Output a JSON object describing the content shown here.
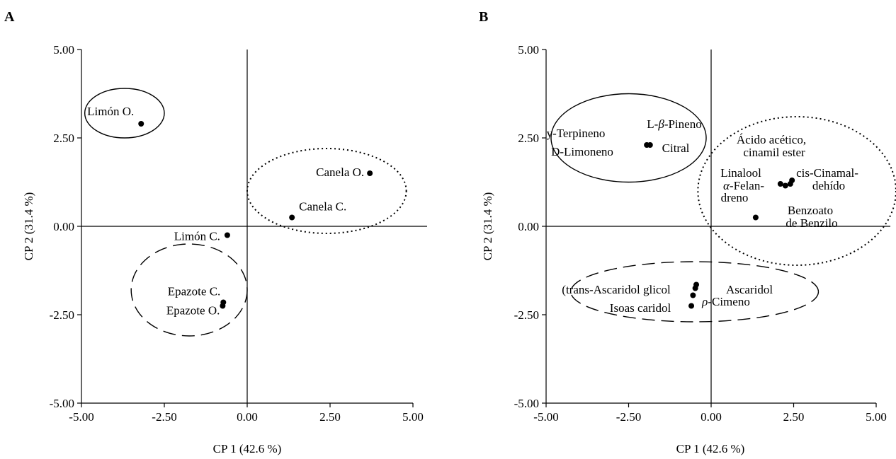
{
  "chart_data": [
    {
      "type": "scatter",
      "panel_label": "A",
      "xlabel": "CP 1 (42.6 %)",
      "ylabel": "CP 2 (31.4 %)",
      "xlim": [
        -5,
        5
      ],
      "ylim": [
        -5,
        5
      ],
      "xticks": [
        "-5.00",
        "-2.50",
        "0.00",
        "2.50",
        "5.00"
      ],
      "yticks": [
        "-5.00",
        "-2.50",
        "0.00",
        "2.50",
        "5.00"
      ],
      "points": [
        {
          "label": "Limón O.",
          "x": -3.2,
          "y": 2.9
        },
        {
          "label": "Canela O.",
          "x": 3.7,
          "y": 1.5
        },
        {
          "label": "Canela C.",
          "x": 1.35,
          "y": 0.25
        },
        {
          "label": "Limón C.",
          "x": -0.6,
          "y": -0.25
        },
        {
          "label": "Epazote C.",
          "x": -0.72,
          "y": -2.15
        },
        {
          "label": "Epazote O.",
          "x": -0.74,
          "y": -2.25
        }
      ],
      "groups": [
        {
          "style": "solid",
          "cx": -3.7,
          "cy": 3.2,
          "rx": 1.2,
          "ry": 0.7
        },
        {
          "style": "dotted",
          "cx": 2.4,
          "cy": 1.0,
          "rx": 2.4,
          "ry": 1.2
        },
        {
          "style": "dashed",
          "cx": -1.75,
          "cy": -1.8,
          "rx": 1.75,
          "ry": 1.3
        }
      ]
    },
    {
      "type": "scatter",
      "panel_label": "B",
      "xlabel": "CP 1 (42.6 %)",
      "ylabel": "CP 2 (31.4 %)",
      "xlim": [
        -5,
        5
      ],
      "ylim": [
        -5,
        5
      ],
      "xticks": [
        "-5.00",
        "-2.50",
        "0.00",
        "2.50",
        "5.00"
      ],
      "yticks": [
        "-5.00",
        "-2.50",
        "0.00",
        "2.50",
        "5.00"
      ],
      "points": [
        {
          "x": -1.95,
          "y": 2.3
        },
        {
          "x": -1.85,
          "y": 2.3
        },
        {
          "x": 2.1,
          "y": 1.2
        },
        {
          "x": 2.25,
          "y": 1.15
        },
        {
          "x": 2.4,
          "y": 1.2
        },
        {
          "x": 2.45,
          "y": 1.3
        },
        {
          "x": 1.35,
          "y": 0.25
        },
        {
          "x": -0.45,
          "y": -1.65
        },
        {
          "x": -0.48,
          "y": -1.75
        },
        {
          "x": -0.55,
          "y": -1.95
        },
        {
          "x": -0.6,
          "y": -2.25
        }
      ],
      "annotations": [
        {
          "text": "y-Terpineno"
        },
        {
          "text": "L-β-Pineno"
        },
        {
          "text": "D-Limoneno"
        },
        {
          "text": "Citral"
        },
        {
          "text": "Ácido acético,"
        },
        {
          "text": "cinamil ester"
        },
        {
          "text": "Linalool"
        },
        {
          "text": "cis-Cinamal-"
        },
        {
          "text": "α-Felan-"
        },
        {
          "text": "dehído"
        },
        {
          "text": "dreno"
        },
        {
          "text": "Benzoato"
        },
        {
          "text": "de Benzilo"
        },
        {
          "text": "(trans-Ascaridol glicol"
        },
        {
          "text": "Ascaridol"
        },
        {
          "text": "Isoas caridol"
        },
        {
          "text": "ρ-Cimeno"
        }
      ],
      "groups": [
        {
          "style": "solid",
          "cx": -2.5,
          "cy": 2.5,
          "rx": 2.35,
          "ry": 1.25
        },
        {
          "style": "dotted",
          "cx": 2.6,
          "cy": 1.0,
          "rx": 3.0,
          "ry": 2.1
        },
        {
          "style": "dashed",
          "cx": -0.5,
          "cy": -1.85,
          "rx": 3.75,
          "ry": 0.85
        }
      ]
    }
  ]
}
